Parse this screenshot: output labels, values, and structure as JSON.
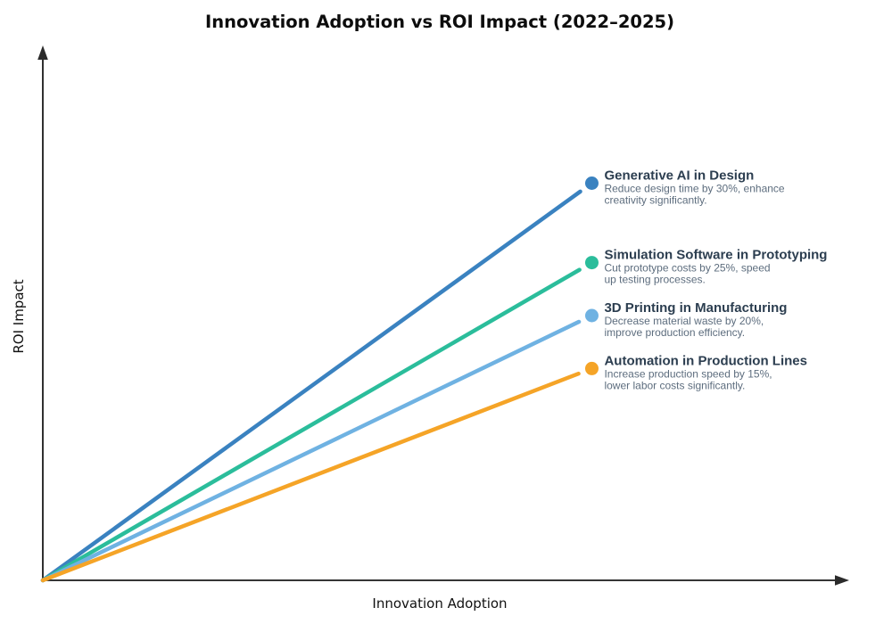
{
  "chart_data": {
    "type": "line",
    "title": "Innovation Adoption vs ROI Impact (2022–2025)",
    "xlabel": "Innovation Adoption",
    "ylabel": "ROI Impact",
    "xlim": [
      0,
      1
    ],
    "ylim": [
      0,
      1
    ],
    "grid": false,
    "legend": "inline-end-labels",
    "axes": {
      "ticks_visible": false,
      "arrowheads": true
    },
    "colors": {
      "background": "#ffffff",
      "title": "#0d0d0d",
      "axis": "#1a1a1a",
      "arrow": "#2b2b2b",
      "axis_text": "#111111",
      "series_title": "#2c3e50",
      "series_desc": "#5d6d7e"
    },
    "series": [
      {
        "name": "Generative AI in Design",
        "description_lines": [
          "Reduce design time by 30%, enhance",
          "creativity significantly."
        ],
        "color": "#3A82C0",
        "x": [
          0,
          0.69
        ],
        "y": [
          0,
          0.75
        ]
      },
      {
        "name": "Simulation Software in Prototyping",
        "description_lines": [
          "Cut prototype costs by 25%, speed",
          "up testing processes."
        ],
        "color": "#2BBD9B",
        "x": [
          0,
          0.69
        ],
        "y": [
          0,
          0.6
        ]
      },
      {
        "name": "3D Printing in Manufacturing",
        "description_lines": [
          "Decrease material waste by 20%,",
          "improve production efficiency."
        ],
        "color": "#6FB2E2",
        "x": [
          0,
          0.69
        ],
        "y": [
          0,
          0.5
        ]
      },
      {
        "name": "Automation in Production Lines",
        "description_lines": [
          "Increase production speed by 15%,",
          "lower labor costs significantly."
        ],
        "color": "#F5A427",
        "x": [
          0,
          0.69
        ],
        "y": [
          0,
          0.4
        ]
      }
    ]
  }
}
